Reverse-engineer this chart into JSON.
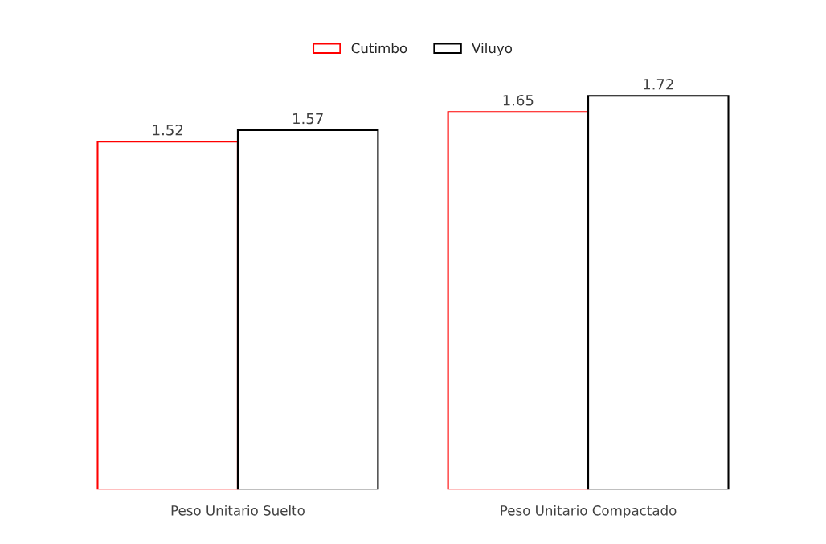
{
  "chart_data": {
    "type": "bar",
    "categories": [
      "Peso Unitario Suelto",
      "Peso Unitario Compactado"
    ],
    "series": [
      {
        "name": "Cutimbo",
        "color": "#ff0000",
        "values": [
          1.52,
          1.65
        ]
      },
      {
        "name": "Viluyo",
        "color": "#000000",
        "values": [
          1.57,
          1.72
        ]
      }
    ],
    "data_labels": true,
    "legend": "top",
    "grid": false
  }
}
